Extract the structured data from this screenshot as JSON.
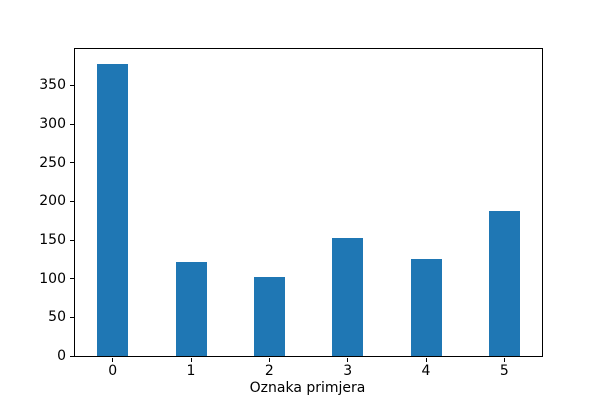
{
  "figure": {
    "background": "#ffffff",
    "title": ""
  },
  "chart_data": {
    "type": "bar",
    "categories": [
      "0",
      "1",
      "2",
      "3",
      "4",
      "5"
    ],
    "values": [
      377,
      122,
      102,
      153,
      126,
      188
    ],
    "title": "",
    "xlabel": "Oznaka primjera",
    "ylabel": "",
    "ylim": [
      0,
      397
    ],
    "yticks": [
      0,
      50,
      100,
      150,
      200,
      250,
      300,
      350
    ],
    "bar_color": "#1f77b4",
    "axis_color": "#000000",
    "grid": false,
    "legend": null
  }
}
